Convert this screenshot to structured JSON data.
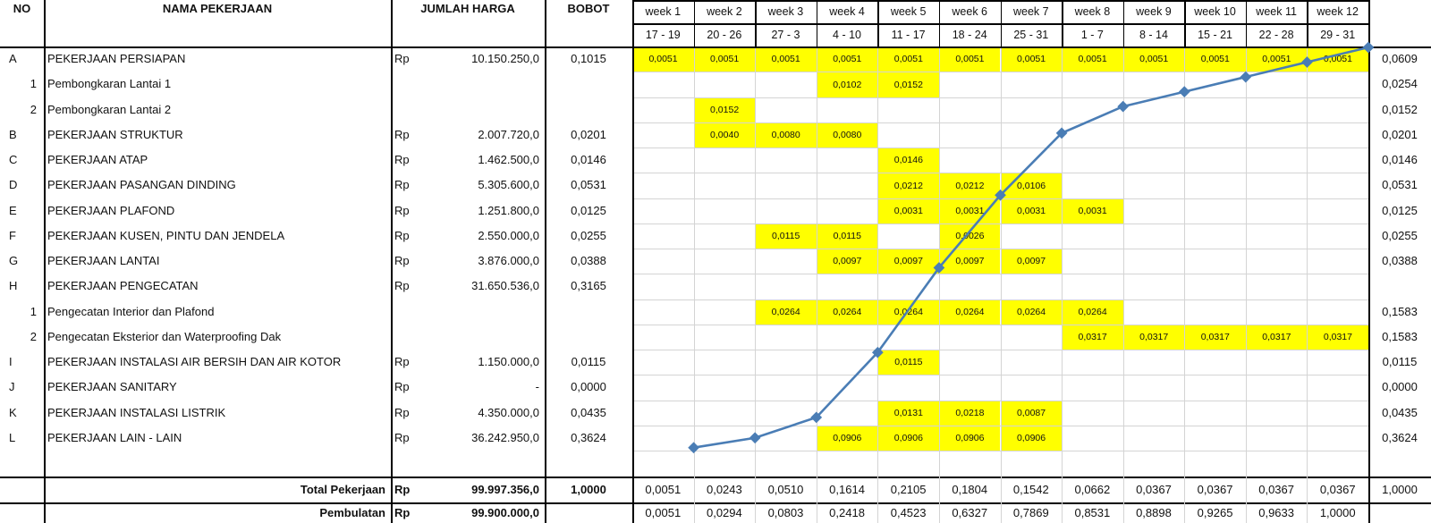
{
  "headers": {
    "no": "NO",
    "nama": "NAMA PEKERJAAN",
    "jumlah": "JUMLAH HARGA",
    "bobot": "BOBOT"
  },
  "weeks": [
    {
      "label": "week 1",
      "dates": "17 - 19"
    },
    {
      "label": "week 2",
      "dates": "20 - 26"
    },
    {
      "label": "week 3",
      "dates": "27 - 3"
    },
    {
      "label": "week 4",
      "dates": "4 - 10"
    },
    {
      "label": "week 5",
      "dates": "11 - 17"
    },
    {
      "label": "week 6",
      "dates": "18 - 24"
    },
    {
      "label": "week 7",
      "dates": "25 - 31"
    },
    {
      "label": "week 8",
      "dates": "1 - 7"
    },
    {
      "label": "week 9",
      "dates": "8 - 14"
    },
    {
      "label": "week 10",
      "dates": "15 - 21"
    },
    {
      "label": "week 11",
      "dates": "22 - 28"
    },
    {
      "label": "week 12",
      "dates": "29 - 31"
    }
  ],
  "rows": [
    {
      "no": "A",
      "name": "PEKERJAAN PERSIAPAN",
      "rp": "Rp",
      "amount": "10.150.250,0",
      "bobot": "0,1015",
      "cells": [
        "0,0051",
        "0,0051",
        "0,0051",
        "0,0051",
        "0,0051",
        "0,0051",
        "0,0051",
        "0,0051",
        "0,0051",
        "0,0051",
        "0,0051",
        "0,0051"
      ],
      "total": "0,0609"
    },
    {
      "no": "1",
      "sub": true,
      "name": "Pembongkaran Lantai 1",
      "rp": "",
      "amount": "",
      "bobot": "",
      "cells": [
        "",
        "",
        "",
        "0,0102",
        "0,0152",
        "",
        "",
        "",
        "",
        "",
        "",
        ""
      ],
      "total": "0,0254"
    },
    {
      "no": "2",
      "sub": true,
      "name": "Pembongkaran Lantai 2",
      "rp": "",
      "amount": "",
      "bobot": "",
      "cells": [
        "",
        "0,0152",
        "",
        "",
        "",
        "",
        "",
        "",
        "",
        "",
        "",
        ""
      ],
      "total": "0,0152"
    },
    {
      "no": "B",
      "name": "PEKERJAAN STRUKTUR",
      "rp": "Rp",
      "amount": "2.007.720,0",
      "bobot": "0,0201",
      "cells": [
        "",
        "0,0040",
        "0,0080",
        "0,0080",
        "",
        "",
        "",
        "",
        "",
        "",
        "",
        ""
      ],
      "total": "0,0201"
    },
    {
      "no": "C",
      "name": "PEKERJAAN ATAP",
      "rp": "Rp",
      "amount": "1.462.500,0",
      "bobot": "0,0146",
      "cells": [
        "",
        "",
        "",
        "",
        "0,0146",
        "",
        "",
        "",
        "",
        "",
        "",
        ""
      ],
      "total": "0,0146"
    },
    {
      "no": "D",
      "name": "PEKERJAAN PASANGAN DINDING",
      "rp": "Rp",
      "amount": "5.305.600,0",
      "bobot": "0,0531",
      "cells": [
        "",
        "",
        "",
        "",
        "0,0212",
        "0,0212",
        "0,0106",
        "",
        "",
        "",
        "",
        ""
      ],
      "total": "0,0531"
    },
    {
      "no": "E",
      "name": "PEKERJAAN PLAFOND",
      "rp": "Rp",
      "amount": "1.251.800,0",
      "bobot": "0,0125",
      "cells": [
        "",
        "",
        "",
        "",
        "0,0031",
        "0,0031",
        "0,0031",
        "0,0031",
        "",
        "",
        "",
        ""
      ],
      "total": "0,0125"
    },
    {
      "no": "F",
      "name": "PEKERJAAN KUSEN, PINTU DAN JENDELA",
      "rp": "Rp",
      "amount": "2.550.000,0",
      "bobot": "0,0255",
      "cells": [
        "",
        "",
        "0,0115",
        "0,0115",
        "",
        "0,0026",
        "",
        "",
        "",
        "",
        "",
        ""
      ],
      "total": "0,0255"
    },
    {
      "no": "G",
      "name": "PEKERJAAN LANTAI",
      "rp": "Rp",
      "amount": "3.876.000,0",
      "bobot": "0,0388",
      "cells": [
        "",
        "",
        "",
        "0,0097",
        "0,0097",
        "0,0097",
        "0,0097",
        "",
        "",
        "",
        "",
        ""
      ],
      "total": "0,0388"
    },
    {
      "no": "H",
      "name": "PEKERJAAN PENGECATAN",
      "rp": "Rp",
      "amount": "31.650.536,0",
      "bobot": "0,3165",
      "cells": [
        "",
        "",
        "",
        "",
        "",
        "",
        "",
        "",
        "",
        "",
        "",
        ""
      ],
      "total": ""
    },
    {
      "no": "1",
      "sub": true,
      "name": "Pengecatan Interior dan Plafond",
      "rp": "",
      "amount": "",
      "bobot": "",
      "cells": [
        "",
        "",
        "0,0264",
        "0,0264",
        "0,0264",
        "0,0264",
        "0,0264",
        "0,0264",
        "",
        "",
        "",
        ""
      ],
      "total": "0,1583"
    },
    {
      "no": "2",
      "sub": true,
      "name": "Pengecatan Eksterior dan Waterproofing Dak",
      "rp": "",
      "amount": "",
      "bobot": "",
      "cells": [
        "",
        "",
        "",
        "",
        "",
        "",
        "",
        "0,0317",
        "0,0317",
        "0,0317",
        "0,0317",
        "0,0317"
      ],
      "total": "0,1583"
    },
    {
      "no": "I",
      "name": "PEKERJAAN INSTALASI AIR BERSIH DAN AIR KOTOR",
      "rp": "Rp",
      "amount": "1.150.000,0",
      "bobot": "0,0115",
      "cells": [
        "",
        "",
        "",
        "",
        "0,0115",
        "",
        "",
        "",
        "",
        "",
        "",
        ""
      ],
      "total": "0,0115"
    },
    {
      "no": "J",
      "name": "PEKERJAAN SANITARY",
      "rp": "Rp",
      "amount": "-",
      "bobot": "0,0000",
      "cells": [
        "",
        "",
        "",
        "",
        "",
        "",
        "",
        "",
        "",
        "",
        "",
        ""
      ],
      "total": "0,0000"
    },
    {
      "no": "K",
      "name": "PEKERJAAN INSTALASI LISTRIK",
      "rp": "Rp",
      "amount": "4.350.000,0",
      "bobot": "0,0435",
      "cells": [
        "",
        "",
        "",
        "",
        "0,0131",
        "0,0218",
        "0,0087",
        "",
        "",
        "",
        "",
        ""
      ],
      "total": "0,0435"
    },
    {
      "no": "L",
      "name": "PEKERJAAN LAIN - LAIN",
      "rp": "Rp",
      "amount": "36.242.950,0",
      "bobot": "0,3624",
      "cells": [
        "",
        "",
        "",
        "0,0906",
        "0,0906",
        "0,0906",
        "0,0906",
        "",
        "",
        "",
        "",
        ""
      ],
      "total": "0,3624"
    },
    {
      "no": "",
      "name": "",
      "rp": "",
      "amount": "",
      "bobot": "",
      "cells": [
        "",
        "",
        "",
        "",
        "",
        "",
        "",
        "",
        "",
        "",
        "",
        ""
      ],
      "total": ""
    }
  ],
  "total_row": {
    "label": "Total Pekerjaan",
    "rp": "Rp",
    "amount": "99.997.356,0",
    "bobot": "1,0000",
    "cells": [
      "0,0051",
      "0,0243",
      "0,0510",
      "0,1614",
      "0,2105",
      "0,1804",
      "0,1542",
      "0,0662",
      "0,0367",
      "0,0367",
      "0,0367",
      "0,0367"
    ],
    "total": "1,0000"
  },
  "pembulatan_row": {
    "label": "Pembulatan",
    "rp": "Rp",
    "amount": "99.900.000,0",
    "cells": [
      "0,0051",
      "0,0294",
      "0,0803",
      "0,2418",
      "0,4523",
      "0,6327",
      "0,7869",
      "0,8531",
      "0,8898",
      "0,9265",
      "0,9633",
      "1,0000"
    ]
  },
  "chart_data": {
    "type": "line",
    "title": "",
    "x": [
      "week 1",
      "week 2",
      "week 3",
      "week 4",
      "week 5",
      "week 6",
      "week 7",
      "week 8",
      "week 9",
      "week 10",
      "week 11",
      "week 12"
    ],
    "series": [
      {
        "values": [
          0.0051,
          0.0294,
          0.0803,
          0.2418,
          0.4523,
          0.6327,
          0.7869,
          0.8531,
          0.8898,
          0.9265,
          0.9633,
          1.0
        ]
      }
    ],
    "ylim": [
      0,
      1
    ],
    "color": "#4a7db5"
  },
  "colors": {
    "highlight": "#ffff00",
    "curve": "#4a7db5",
    "grid": "#d4d4d4"
  }
}
